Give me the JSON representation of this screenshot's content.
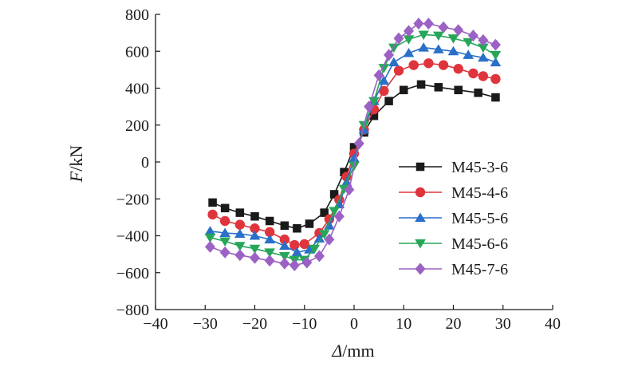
{
  "chart_data": {
    "type": "line",
    "xlabel_italic": "Δ",
    "xlabel_unit": "/mm",
    "ylabel_italic": "F",
    "ylabel_unit": "/kN",
    "xlim": [
      -40,
      40
    ],
    "ylim": [
      -800,
      800
    ],
    "x_ticks": [
      -40,
      -30,
      -20,
      -10,
      0,
      10,
      20,
      30,
      40
    ],
    "y_ticks": [
      -800,
      -600,
      -400,
      -200,
      0,
      200,
      400,
      600,
      800
    ],
    "x_tick_labels": [
      "−40",
      "−30",
      "−20",
      "−10",
      "0",
      "10",
      "20",
      "30",
      "40"
    ],
    "y_tick_labels": [
      "−800",
      "−600",
      "−400",
      "−200",
      "0",
      "200",
      "400",
      "600",
      "800"
    ],
    "grid": false,
    "legend_position": "right",
    "series": [
      {
        "name": "M45-3-6",
        "color": "#1a1a1a",
        "marker": "square",
        "points": [
          [
            -28.5,
            -220
          ],
          [
            -26,
            -250
          ],
          [
            -23,
            -275
          ],
          [
            -20,
            -295
          ],
          [
            -17,
            -320
          ],
          [
            -14,
            -345
          ],
          [
            -11.5,
            -360
          ],
          [
            -9,
            -335
          ],
          [
            -6,
            -275
          ],
          [
            -4,
            -175
          ],
          [
            -2,
            -55
          ],
          [
            0,
            80
          ],
          [
            2,
            160
          ],
          [
            4,
            250
          ],
          [
            7,
            330
          ],
          [
            10,
            390
          ],
          [
            13.5,
            420
          ],
          [
            17,
            405
          ],
          [
            21,
            390
          ],
          [
            25,
            375
          ],
          [
            28.5,
            350
          ]
        ]
      },
      {
        "name": "M45-4-6",
        "color": "#e0343c",
        "marker": "circle",
        "points": [
          [
            -28.5,
            -285
          ],
          [
            -26,
            -320
          ],
          [
            -23,
            -340
          ],
          [
            -20,
            -360
          ],
          [
            -17,
            -380
          ],
          [
            -14,
            -420
          ],
          [
            -12,
            -450
          ],
          [
            -10,
            -445
          ],
          [
            -7,
            -385
          ],
          [
            -5,
            -310
          ],
          [
            -3,
            -205
          ],
          [
            -1.5,
            -80
          ],
          [
            0,
            45
          ],
          [
            2,
            175
          ],
          [
            4,
            285
          ],
          [
            6,
            385
          ],
          [
            9,
            495
          ],
          [
            12,
            525
          ],
          [
            15,
            535
          ],
          [
            18,
            525
          ],
          [
            21,
            505
          ],
          [
            24,
            480
          ],
          [
            26,
            465
          ],
          [
            28.5,
            450
          ]
        ]
      },
      {
        "name": "M45-5-6",
        "color": "#2a6fc9",
        "marker": "triangle-up",
        "points": [
          [
            -29,
            -375
          ],
          [
            -26,
            -385
          ],
          [
            -23,
            -390
          ],
          [
            -20,
            -400
          ],
          [
            -17,
            -420
          ],
          [
            -14,
            -455
          ],
          [
            -11.5,
            -490
          ],
          [
            -9,
            -475
          ],
          [
            -7,
            -415
          ],
          [
            -5,
            -345
          ],
          [
            -3,
            -230
          ],
          [
            -1.5,
            -110
          ],
          [
            0,
            20
          ],
          [
            2,
            175
          ],
          [
            4,
            330
          ],
          [
            6,
            440
          ],
          [
            8,
            540
          ],
          [
            11,
            590
          ],
          [
            14,
            620
          ],
          [
            17,
            610
          ],
          [
            20,
            600
          ],
          [
            23,
            580
          ],
          [
            26,
            565
          ],
          [
            28.5,
            540
          ]
        ]
      },
      {
        "name": "M45-6-6",
        "color": "#27a65a",
        "marker": "triangle-down",
        "points": [
          [
            -29,
            -410
          ],
          [
            -26,
            -430
          ],
          [
            -23,
            -455
          ],
          [
            -20,
            -470
          ],
          [
            -17,
            -490
          ],
          [
            -14,
            -510
          ],
          [
            -12,
            -530
          ],
          [
            -10,
            -530
          ],
          [
            -8,
            -470
          ],
          [
            -6,
            -390
          ],
          [
            -4,
            -265
          ],
          [
            -2,
            -145
          ],
          [
            0,
            -20
          ],
          [
            2,
            200
          ],
          [
            4,
            330
          ],
          [
            6,
            510
          ],
          [
            8,
            620
          ],
          [
            11,
            665
          ],
          [
            14,
            690
          ],
          [
            17,
            685
          ],
          [
            20,
            670
          ],
          [
            23,
            650
          ],
          [
            26,
            620
          ],
          [
            28.5,
            580
          ]
        ]
      },
      {
        "name": "M45-7-6",
        "color": "#9b62c4",
        "marker": "diamond",
        "points": [
          [
            -29,
            -460
          ],
          [
            -26,
            -490
          ],
          [
            -23,
            -505
          ],
          [
            -20,
            -520
          ],
          [
            -17,
            -535
          ],
          [
            -14,
            -550
          ],
          [
            -12,
            -560
          ],
          [
            -9.5,
            -545
          ],
          [
            -7,
            -510
          ],
          [
            -5,
            -420
          ],
          [
            -3,
            -295
          ],
          [
            -1,
            -150
          ],
          [
            1,
            100
          ],
          [
            3,
            300
          ],
          [
            5,
            470
          ],
          [
            7,
            580
          ],
          [
            9,
            670
          ],
          [
            11,
            710
          ],
          [
            13,
            750
          ],
          [
            15,
            750
          ],
          [
            18,
            730
          ],
          [
            21,
            715
          ],
          [
            24,
            685
          ],
          [
            26,
            660
          ],
          [
            28.5,
            635
          ]
        ]
      }
    ]
  }
}
